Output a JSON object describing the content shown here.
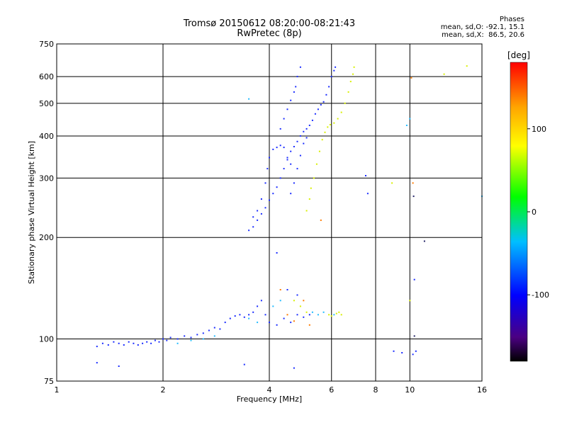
{
  "chart_data": {
    "type": "scatter",
    "title": "Tromsø 20150612 08:20:00-08:21:43",
    "subtitle": "RwPretec (8p)",
    "xlabel": "Frequency [MHz]",
    "ylabel": "Stationary phase Virtual Height [km]",
    "x_scale": "log",
    "y_scale": "log",
    "xlim": [
      1,
      16
    ],
    "ylim": [
      75,
      750
    ],
    "x_ticks": [
      1,
      2,
      4,
      6,
      8,
      10,
      16
    ],
    "x_tick_labels": [
      "1",
      "2",
      "4",
      "6",
      "8",
      "10",
      "16"
    ],
    "y_ticks": [
      75,
      100,
      200,
      300,
      400,
      500,
      600,
      750
    ],
    "y_tick_labels": [
      "75",
      "100",
      "200",
      "300",
      "400",
      "500",
      "600",
      "750"
    ],
    "grid": true,
    "colorbar": {
      "label": "[deg]",
      "range": [
        -180,
        180
      ],
      "ticks": [
        100,
        0,
        -100
      ],
      "tick_labels": [
        "100",
        "0",
        "-100"
      ]
    },
    "phase_stats": {
      "heading": "Phases",
      "line_o": "mean, sd,O: -92.1, 15.1",
      "line_x": "mean, sd,X:  86.5, 20.6"
    },
    "series": [
      {
        "points": [
          [
            1.3,
            95
          ],
          [
            1.35,
            97
          ],
          [
            1.4,
            96
          ],
          [
            1.45,
            98
          ],
          [
            1.5,
            97
          ],
          [
            1.55,
            96
          ],
          [
            1.6,
            98
          ],
          [
            1.65,
            97
          ],
          [
            1.7,
            96
          ],
          [
            1.75,
            97
          ],
          [
            1.8,
            98
          ],
          [
            1.85,
            97
          ],
          [
            1.9,
            99
          ],
          [
            1.95,
            98
          ],
          [
            2.0,
            100
          ],
          [
            2.05,
            99
          ],
          [
            2.1,
            101
          ],
          [
            2.2,
            100
          ],
          [
            2.3,
            102
          ],
          [
            2.4,
            101
          ],
          [
            2.5,
            103
          ],
          [
            2.6,
            104
          ],
          [
            2.7,
            106
          ],
          [
            2.8,
            108
          ],
          [
            2.9,
            107
          ],
          [
            3.0,
            112
          ],
          [
            3.1,
            115
          ],
          [
            3.2,
            117
          ],
          [
            3.3,
            118
          ],
          [
            3.4,
            116
          ],
          [
            3.5,
            118
          ],
          [
            3.6,
            120
          ],
          [
            3.7,
            125
          ],
          [
            3.8,
            130
          ],
          [
            3.9,
            118
          ],
          [
            4.0,
            112
          ],
          [
            4.2,
            110
          ],
          [
            4.4,
            115
          ],
          [
            4.6,
            112
          ],
          [
            4.8,
            118
          ],
          [
            5.0,
            116
          ],
          [
            5.2,
            118
          ],
          [
            3.6,
            230
          ],
          [
            3.7,
            240
          ],
          [
            3.8,
            260
          ],
          [
            3.9,
            290
          ],
          [
            3.95,
            320
          ],
          [
            4.0,
            345
          ],
          [
            4.1,
            365
          ],
          [
            4.2,
            370
          ],
          [
            4.3,
            375
          ],
          [
            4.4,
            370
          ],
          [
            4.5,
            340
          ],
          [
            4.6,
            330
          ],
          [
            3.5,
            210
          ],
          [
            3.6,
            215
          ],
          [
            3.7,
            225
          ],
          [
            3.8,
            235
          ],
          [
            3.9,
            245
          ],
          [
            4.0,
            258
          ],
          [
            4.1,
            270
          ],
          [
            4.2,
            282
          ],
          [
            4.3,
            300
          ],
          [
            4.4,
            320
          ],
          [
            4.5,
            345
          ],
          [
            4.6,
            360
          ],
          [
            4.7,
            372
          ],
          [
            4.8,
            385
          ],
          [
            4.9,
            400
          ],
          [
            5.0,
            412
          ],
          [
            5.1,
            420
          ],
          [
            5.2,
            430
          ],
          [
            5.3,
            445
          ],
          [
            5.4,
            465
          ],
          [
            5.5,
            480
          ],
          [
            5.6,
            495
          ],
          [
            5.7,
            505
          ],
          [
            5.8,
            530
          ],
          [
            5.9,
            560
          ],
          [
            6.0,
            600
          ],
          [
            6.1,
            625
          ],
          [
            6.15,
            640
          ],
          [
            4.6,
            270
          ],
          [
            4.7,
            290
          ],
          [
            4.8,
            320
          ],
          [
            4.9,
            350
          ],
          [
            5.0,
            380
          ],
          [
            5.1,
            395
          ],
          [
            4.3,
            420
          ],
          [
            4.4,
            450
          ],
          [
            4.5,
            480
          ],
          [
            4.6,
            510
          ],
          [
            4.7,
            540
          ],
          [
            4.75,
            560
          ],
          [
            4.8,
            600
          ],
          [
            4.9,
            640
          ],
          [
            1.3,
            85
          ],
          [
            1.5,
            83
          ],
          [
            4.7,
            82
          ],
          [
            3.4,
            84
          ],
          [
            4.2,
            180
          ],
          [
            4.5,
            140
          ],
          [
            4.8,
            135
          ],
          [
            9.0,
            92
          ],
          [
            9.5,
            91
          ],
          [
            10.2,
            90
          ],
          [
            10.4,
            92
          ],
          [
            10.3,
            150
          ],
          [
            7.5,
            305
          ],
          [
            7.6,
            270
          ]
        ]
      },
      {
        "points": [
          [
            2.2,
            97
          ],
          [
            2.4,
            99
          ],
          [
            2.6,
            100
          ],
          [
            2.8,
            102
          ],
          [
            3.5,
            115
          ],
          [
            3.7,
            112
          ],
          [
            4.1,
            125
          ],
          [
            4.3,
            130
          ],
          [
            5.3,
            120
          ],
          [
            5.5,
            118
          ],
          [
            5.7,
            120
          ],
          [
            6.1,
            118
          ],
          [
            3.5,
            515
          ],
          [
            10.0,
            450
          ],
          [
            9.8,
            430
          ],
          [
            16,
            265
          ]
        ]
      },
      {
        "points": [
          [
            5.1,
            240
          ],
          [
            5.2,
            260
          ],
          [
            5.25,
            280
          ],
          [
            5.35,
            300
          ],
          [
            5.45,
            330
          ],
          [
            5.55,
            360
          ],
          [
            5.65,
            390
          ],
          [
            5.75,
            410
          ],
          [
            5.85,
            425
          ],
          [
            5.95,
            432
          ],
          [
            6.1,
            437
          ],
          [
            6.25,
            450
          ],
          [
            6.4,
            470
          ],
          [
            6.55,
            500
          ],
          [
            6.7,
            540
          ],
          [
            6.8,
            580
          ],
          [
            6.9,
            610
          ],
          [
            6.95,
            640
          ],
          [
            5.9,
            118
          ],
          [
            6.0,
            117
          ],
          [
            6.2,
            119
          ],
          [
            6.3,
            120
          ],
          [
            6.4,
            118
          ],
          [
            4.7,
            130
          ],
          [
            4.9,
            125
          ],
          [
            5.1,
            120
          ],
          [
            8.9,
            290
          ],
          [
            10.0,
            130
          ],
          [
            12.5,
            610
          ],
          [
            14.5,
            645
          ]
        ]
      },
      {
        "points": [
          [
            4.3,
            140
          ],
          [
            4.5,
            118
          ],
          [
            4.7,
            113
          ],
          [
            5.0,
            130
          ],
          [
            5.2,
            110
          ],
          [
            5.6,
            225
          ],
          [
            10.2,
            290
          ],
          [
            10.1,
            595
          ]
        ]
      },
      {
        "points": [
          [
            11.0,
            195
          ],
          [
            10.3,
            102
          ],
          [
            10.25,
            265
          ]
        ]
      }
    ]
  }
}
